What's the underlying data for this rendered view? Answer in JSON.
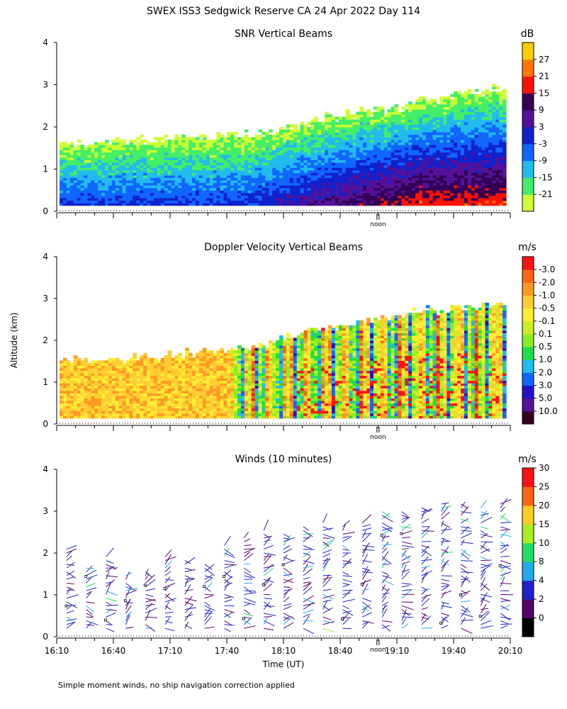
{
  "title": "SWEX ISS3 Sedgwick Reserve CA  24 Apr 2022 Day 114",
  "footnote": "Simple moment winds, no ship navigation correction applied",
  "noon_label": "noon",
  "chart_data": [
    {
      "type": "heatmap",
      "title": "SNR Vertical Beams",
      "ylabel": "",
      "xlabel": "",
      "ylim": [
        0,
        4
      ],
      "yticks": [
        "0",
        "1",
        "2",
        "3",
        "4"
      ],
      "xlim_hours_utc": [
        16.1667,
        20.1667
      ],
      "colorbar": {
        "unit": "dB",
        "labels": [
          "-21",
          "-15",
          "-9",
          "-3",
          "3",
          "9",
          "15",
          "21",
          "27"
        ],
        "colors": [
          "#ccff33",
          "#44ee66",
          "#22bbee",
          "#1166ff",
          "#1122cc",
          "#551199",
          "#330055",
          "#ff1100",
          "#ff7700",
          "#ffcc00"
        ]
      },
      "data_top_km_by_hour": [
        {
          "t": 16.17,
          "top": 1.6
        },
        {
          "t": 17.0,
          "top": 1.7
        },
        {
          "t": 17.9,
          "top": 1.85
        },
        {
          "t": 18.5,
          "top": 2.2
        },
        {
          "t": 19.2,
          "top": 2.5
        },
        {
          "t": 20.0,
          "top": 2.9
        }
      ]
    },
    {
      "type": "heatmap",
      "title": "Doppler Velocity Vertical Beams",
      "ylabel": "Altitude (km)",
      "xlabel": "",
      "ylim": [
        0,
        4
      ],
      "yticks": [
        "0",
        "1",
        "2",
        "3",
        "4"
      ],
      "xlim_hours_utc": [
        16.1667,
        20.1667
      ],
      "colorbar": {
        "unit": "m/s",
        "labels": [
          "10.0",
          "5.0",
          "3.0",
          "2.0",
          "1.0",
          "0.5",
          "0.1",
          "-0.1",
          "-0.5",
          "-1.0",
          "-2.0",
          "-3.0"
        ],
        "colors": [
          "#330022",
          "#551199",
          "#2211cc",
          "#1166ff",
          "#22bbee",
          "#22dd44",
          "#88ee22",
          "#ccee22",
          "#ffee33",
          "#ffcc33",
          "#ff9922",
          "#ff6611",
          "#ff1111"
        ]
      },
      "data_top_km_by_hour": [
        {
          "t": 16.17,
          "top": 1.5
        },
        {
          "t": 17.0,
          "top": 1.6
        },
        {
          "t": 17.9,
          "top": 1.85
        },
        {
          "t": 18.5,
          "top": 2.3
        },
        {
          "t": 19.2,
          "top": 2.6
        },
        {
          "t": 20.0,
          "top": 2.9
        }
      ]
    },
    {
      "type": "scatter",
      "title": "Winds (10 minutes)",
      "ylabel": "",
      "xlabel": "Time (UT)",
      "ylim": [
        0,
        4
      ],
      "yticks": [
        "0",
        "1",
        "2",
        "3",
        "4"
      ],
      "xticks": [
        "16:10",
        "16:40",
        "17:10",
        "17:40",
        "18:10",
        "18:40",
        "19:10",
        "19:40",
        "20:10"
      ],
      "xlim_hours_utc": [
        16.1667,
        20.1667
      ],
      "colorbar": {
        "unit": "m/s",
        "labels": [
          "0",
          "2",
          "4",
          "8",
          "10",
          "15",
          "20",
          "25",
          "30"
        ],
        "colors": [
          "#000000",
          "#550066",
          "#2222cc",
          "#22aaee",
          "#22dd66",
          "#aaee22",
          "#ffcc22",
          "#ff6611",
          "#ff1111"
        ]
      },
      "profile_tops_km": [
        2.1,
        1.7,
        2.0,
        1.5,
        1.6,
        2.0,
        1.9,
        1.8,
        2.2,
        2.4,
        2.6,
        2.5,
        2.7,
        2.8,
        2.7,
        2.8,
        3.0,
        3.0,
        3.1,
        3.2,
        3.2,
        3.1,
        3.2
      ]
    }
  ]
}
